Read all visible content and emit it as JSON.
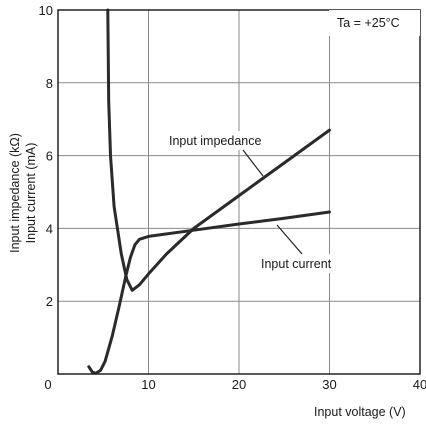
{
  "chart_data": {
    "type": "line",
    "title": "",
    "xlabel": "Input voltage (V)",
    "ylabel_lines": [
      "Input impedance (kΩ)",
      "Input current (mA)"
    ],
    "xlim": [
      0,
      40
    ],
    "ylim": [
      0,
      10
    ],
    "x_ticks": [
      "0",
      "10",
      "20",
      "30",
      "40"
    ],
    "y_ticks": [
      "2",
      "4",
      "6",
      "8",
      "10"
    ],
    "grid": true,
    "condition_label": "Ta = +25°C",
    "series": [
      {
        "name": "Input impedance",
        "points": [
          [
            5.5,
            10.0
          ],
          [
            5.6,
            7.5
          ],
          [
            5.8,
            6.0
          ],
          [
            6.2,
            4.6
          ],
          [
            7.0,
            3.3
          ],
          [
            7.6,
            2.6
          ],
          [
            8.2,
            2.3
          ],
          [
            9.0,
            2.45
          ],
          [
            10.0,
            2.75
          ],
          [
            12.0,
            3.3
          ],
          [
            15.0,
            4.0
          ],
          [
            20.0,
            4.9
          ],
          [
            25.0,
            5.8
          ],
          [
            30.0,
            6.7
          ]
        ]
      },
      {
        "name": "Input current",
        "points": [
          [
            3.4,
            0.2
          ],
          [
            3.8,
            0.05
          ],
          [
            4.2,
            0.02
          ],
          [
            4.7,
            0.1
          ],
          [
            5.2,
            0.35
          ],
          [
            6.0,
            1.05
          ],
          [
            6.8,
            1.9
          ],
          [
            7.5,
            2.7
          ],
          [
            8.0,
            3.2
          ],
          [
            8.5,
            3.55
          ],
          [
            9.0,
            3.7
          ],
          [
            10.0,
            3.78
          ],
          [
            15.0,
            3.95
          ],
          [
            20.0,
            4.12
          ],
          [
            25.0,
            4.28
          ],
          [
            30.0,
            4.45
          ]
        ]
      }
    ],
    "annotations": [
      {
        "text": "Input impedance",
        "series": "Input impedance"
      },
      {
        "text": "Input current",
        "series": "Input current"
      }
    ]
  }
}
